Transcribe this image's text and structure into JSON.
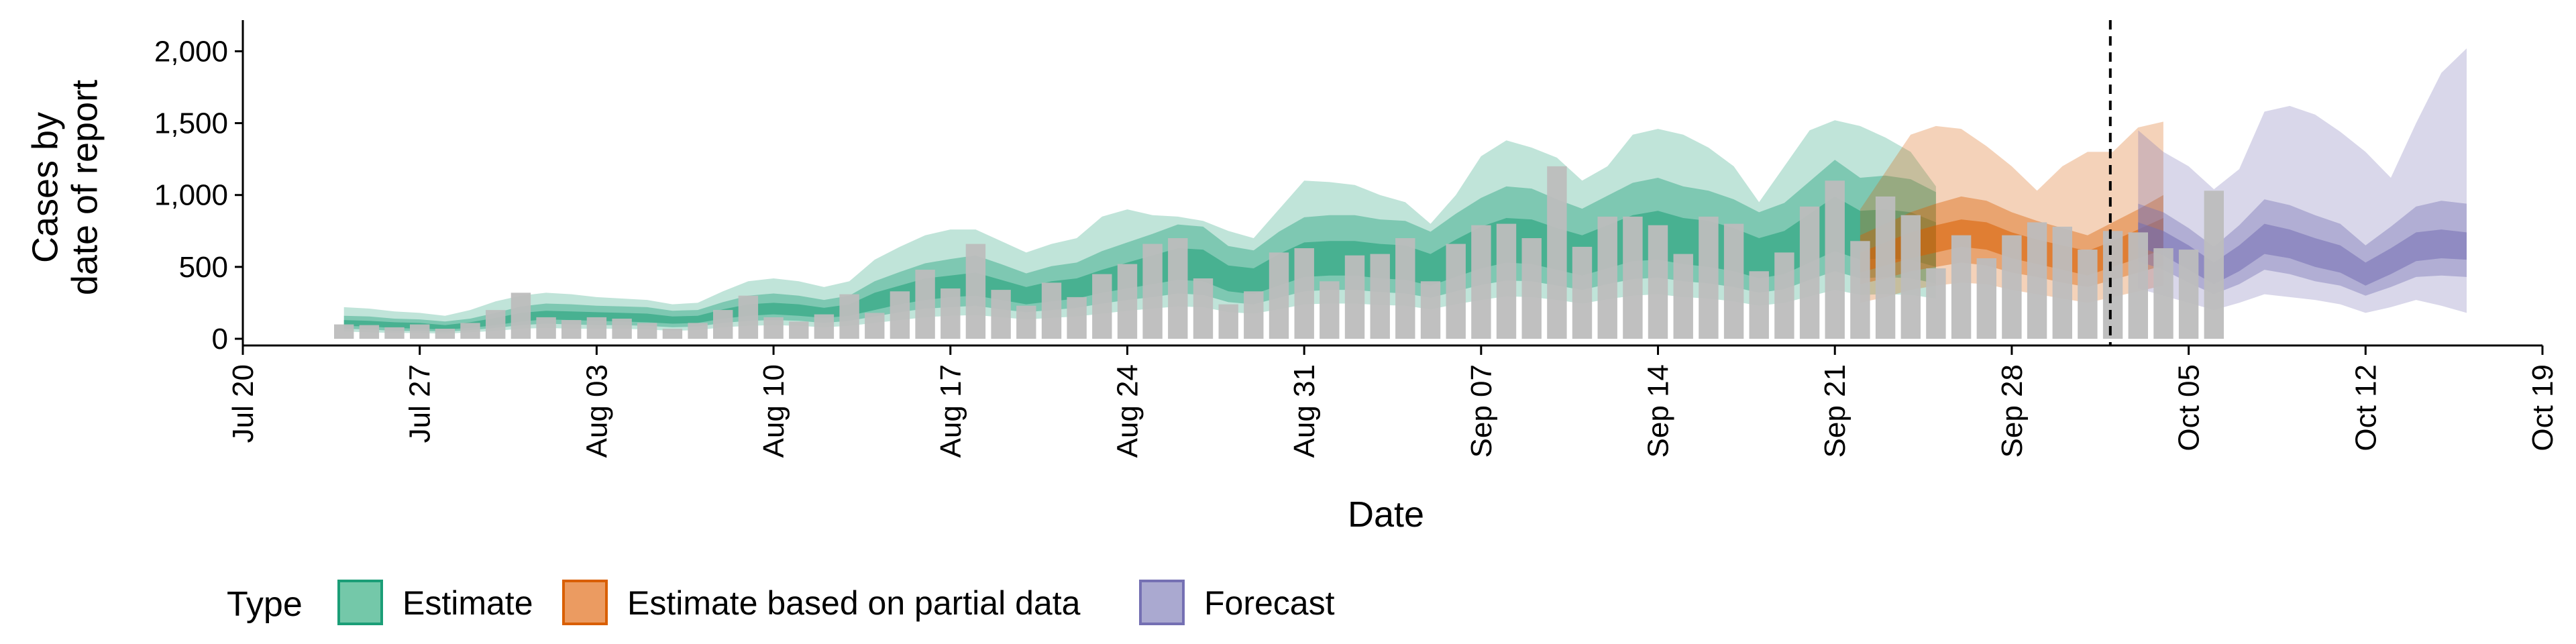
{
  "chart_data": {
    "type": "bar",
    "xlabel": "Date",
    "ylabel_lines": [
      "Cases by",
      "date of report"
    ],
    "ylim": [
      0,
      2100
    ],
    "yticks": [
      0,
      500,
      1000,
      1500,
      2000
    ],
    "ytick_labels": [
      "0",
      "500",
      "1,000",
      "1,500",
      "2,000"
    ],
    "xlim": [
      "2020-07-20",
      "2020-10-19"
    ],
    "xticks": [
      "2020-07-20",
      "2020-07-27",
      "2020-08-03",
      "2020-08-10",
      "2020-08-17",
      "2020-08-24",
      "2020-08-31",
      "2020-09-07",
      "2020-09-14",
      "2020-09-21",
      "2020-09-28",
      "2020-10-05",
      "2020-10-12",
      "2020-10-19"
    ],
    "xtick_labels": [
      "Jul 20",
      "Jul 27",
      "Aug 03",
      "Aug 10",
      "Aug 17",
      "Aug 24",
      "Aug 31",
      "Sep 07",
      "Sep 14",
      "Sep 21",
      "Sep 28",
      "Oct 05",
      "Oct 12",
      "Oct 19"
    ],
    "report_cutoff_date": "2020-10-02",
    "bars": {
      "start_date": "2020-07-24",
      "color": "#bdbdbd",
      "values": [
        100,
        95,
        80,
        100,
        70,
        110,
        200,
        320,
        150,
        130,
        150,
        140,
        110,
        70,
        110,
        200,
        300,
        150,
        120,
        170,
        310,
        180,
        330,
        480,
        350,
        660,
        340,
        230,
        390,
        290,
        450,
        520,
        660,
        700,
        420,
        240,
        330,
        600,
        630,
        400,
        580,
        590,
        700,
        400,
        660,
        790,
        800,
        700,
        1200,
        640,
        850,
        850,
        790,
        590,
        850,
        800,
        470,
        600,
        920,
        1100,
        680,
        990,
        860,
        490,
        720,
        560,
        720,
        810,
        780,
        620,
        750,
        740,
        630,
        620,
        1030
      ]
    },
    "legend": {
      "title": "Type",
      "position": "bottom",
      "items": [
        {
          "label": "Estimate",
          "fill": "#74c8a9",
          "stroke": "#1b9e77"
        },
        {
          "label": "Estimate based on partial data",
          "fill": "#eb9b61",
          "stroke": "#d95f02"
        },
        {
          "label": "Forecast",
          "fill": "#aaa9d0",
          "stroke": "#7570b3"
        }
      ]
    },
    "series": [
      {
        "name": "Estimate",
        "color": "#1b9e77",
        "start_date": "2020-07-24",
        "median": [
          110,
          105,
          95,
          90,
          80,
          95,
          120,
          150,
          165,
          160,
          155,
          150,
          145,
          130,
          135,
          170,
          200,
          210,
          200,
          180,
          200,
          260,
          300,
          340,
          360,
          380,
          340,
          300,
          330,
          350,
          400,
          440,
          480,
          520,
          510,
          420,
          400,
          480,
          550,
          560,
          560,
          540,
          530,
          480,
          560,
          630,
          680,
          670,
          620,
          580,
          640,
          700,
          720,
          680,
          660,
          620,
          560,
          600,
          700,
          800,
          720,
          730,
          720,
          660
        ],
        "inner": {
          "lower": [
            90,
            85,
            75,
            70,
            65,
            75,
            95,
            120,
            135,
            130,
            125,
            120,
            115,
            105,
            110,
            140,
            160,
            170,
            160,
            145,
            160,
            200,
            240,
            270,
            290,
            300,
            270,
            240,
            260,
            280,
            320,
            350,
            380,
            410,
            400,
            330,
            310,
            370,
            430,
            440,
            440,
            420,
            410,
            370,
            430,
            490,
            530,
            520,
            480,
            440,
            490,
            540,
            550,
            520,
            500,
            470,
            420,
            450,
            530,
            610,
            550,
            560,
            550,
            500
          ],
          "upper": [
            130,
            125,
            115,
            110,
            95,
            115,
            145,
            180,
            195,
            190,
            185,
            180,
            175,
            155,
            160,
            205,
            240,
            250,
            240,
            215,
            240,
            320,
            370,
            420,
            440,
            460,
            410,
            360,
            400,
            420,
            480,
            530,
            580,
            630,
            620,
            510,
            490,
            590,
            670,
            680,
            680,
            660,
            650,
            590,
            690,
            780,
            840,
            830,
            770,
            720,
            790,
            860,
            890,
            840,
            820,
            770,
            700,
            750,
            870,
            990,
            890,
            900,
            880,
            810
          ]
        },
        "mid": {
          "lower": [
            70,
            65,
            55,
            55,
            50,
            60,
            75,
            95,
            105,
            100,
            95,
            95,
            90,
            80,
            85,
            110,
            125,
            130,
            125,
            110,
            125,
            155,
            185,
            210,
            220,
            230,
            205,
            185,
            200,
            215,
            245,
            270,
            290,
            315,
            305,
            255,
            240,
            285,
            330,
            340,
            340,
            325,
            315,
            285,
            330,
            375,
            405,
            400,
            370,
            340,
            380,
            415,
            425,
            400,
            385,
            360,
            320,
            345,
            410,
            470,
            420,
            430,
            420,
            385
          ],
          "upper": [
            160,
            155,
            140,
            135,
            120,
            140,
            180,
            225,
            245,
            240,
            230,
            225,
            220,
            195,
            200,
            255,
            300,
            315,
            300,
            270,
            300,
            400,
            465,
            525,
            555,
            580,
            520,
            455,
            505,
            530,
            610,
            670,
            730,
            795,
            780,
            645,
            615,
            745,
            845,
            860,
            860,
            830,
            820,
            745,
            870,
            980,
            1060,
            1045,
            970,
            905,
            995,
            1085,
            1120,
            1060,
            1030,
            970,
            880,
            945,
            1095,
            1245,
            1120,
            1135,
            1110,
            1020
          ]
        },
        "outer": {
          "lower": [
            50,
            45,
            40,
            40,
            35,
            45,
            55,
            70,
            75,
            70,
            70,
            70,
            65,
            55,
            60,
            80,
            90,
            95,
            90,
            80,
            90,
            110,
            130,
            150,
            160,
            165,
            150,
            135,
            145,
            155,
            175,
            195,
            210,
            225,
            220,
            185,
            175,
            205,
            240,
            245,
            245,
            235,
            230,
            205,
            240,
            270,
            295,
            290,
            270,
            245,
            275,
            300,
            310,
            290,
            280,
            260,
            230,
            250,
            295,
            340,
            305,
            310,
            305,
            280
          ],
          "upper": [
            220,
            210,
            190,
            180,
            160,
            200,
            260,
            300,
            320,
            310,
            290,
            280,
            270,
            240,
            250,
            330,
            400,
            420,
            400,
            360,
            400,
            550,
            640,
            720,
            760,
            760,
            680,
            600,
            660,
            700,
            850,
            900,
            860,
            850,
            820,
            750,
            700,
            900,
            1100,
            1090,
            1070,
            1000,
            950,
            800,
            1000,
            1270,
            1380,
            1330,
            1260,
            1100,
            1200,
            1420,
            1460,
            1420,
            1330,
            1200,
            950,
            1200,
            1450,
            1520,
            1480,
            1400,
            1300,
            1060
          ]
        }
      },
      {
        "name": "Estimate based on partial data",
        "color": "#d95f02",
        "start_date": "2020-09-22",
        "median": [
          520,
          580,
          640,
          680,
          720,
          700,
          640,
          600,
          560,
          520,
          580,
          650,
          720
        ],
        "inner": {
          "lower": [
            460,
            510,
            560,
            600,
            640,
            620,
            560,
            520,
            480,
            440,
            500,
            560,
            620
          ],
          "upper": [
            600,
            670,
            740,
            790,
            830,
            810,
            740,
            690,
            650,
            610,
            680,
            760,
            840
          ]
        },
        "mid": {
          "lower": [
            380,
            420,
            470,
            500,
            530,
            510,
            460,
            430,
            390,
            360,
            410,
            460,
            510
          ],
          "upper": [
            720,
            800,
            880,
            940,
            990,
            960,
            880,
            820,
            770,
            720,
            810,
            900,
            1000
          ]
        },
        "outer": {
          "lower": [
            250,
            290,
            340,
            370,
            390,
            380,
            340,
            310,
            280,
            250,
            290,
            330,
            370
          ],
          "upper": [
            900,
            1160,
            1420,
            1480,
            1460,
            1340,
            1200,
            1030,
            1200,
            1300,
            1300,
            1470,
            1510
          ]
        }
      },
      {
        "name": "Forecast",
        "color": "#7570b3",
        "start_date": "2020-10-03",
        "median": [
          720,
          660,
          560,
          450,
          560,
          700,
          660,
          600,
          560,
          450,
          540,
          640,
          660,
          640
        ],
        "inner": {
          "lower": [
            640,
            580,
            480,
            380,
            470,
            590,
            560,
            500,
            460,
            370,
            450,
            540,
            560,
            550
          ],
          "upper": [
            810,
            750,
            650,
            530,
            650,
            800,
            760,
            700,
            650,
            530,
            630,
            740,
            760,
            740
          ]
        },
        "mid": {
          "lower": [
            540,
            480,
            390,
            310,
            380,
            480,
            450,
            400,
            370,
            300,
            360,
            430,
            440,
            430
          ],
          "upper": [
            940,
            880,
            770,
            640,
            790,
            970,
            930,
            860,
            800,
            650,
            780,
            920,
            960,
            940
          ]
        },
        "outer": {
          "lower": [
            350,
            300,
            250,
            200,
            250,
            310,
            290,
            270,
            240,
            180,
            220,
            270,
            230,
            180
          ],
          "upper": [
            1450,
            1300,
            1200,
            1040,
            1180,
            1580,
            1620,
            1560,
            1440,
            1300,
            1120,
            1500,
            1850,
            2020
          ]
        }
      }
    ]
  }
}
